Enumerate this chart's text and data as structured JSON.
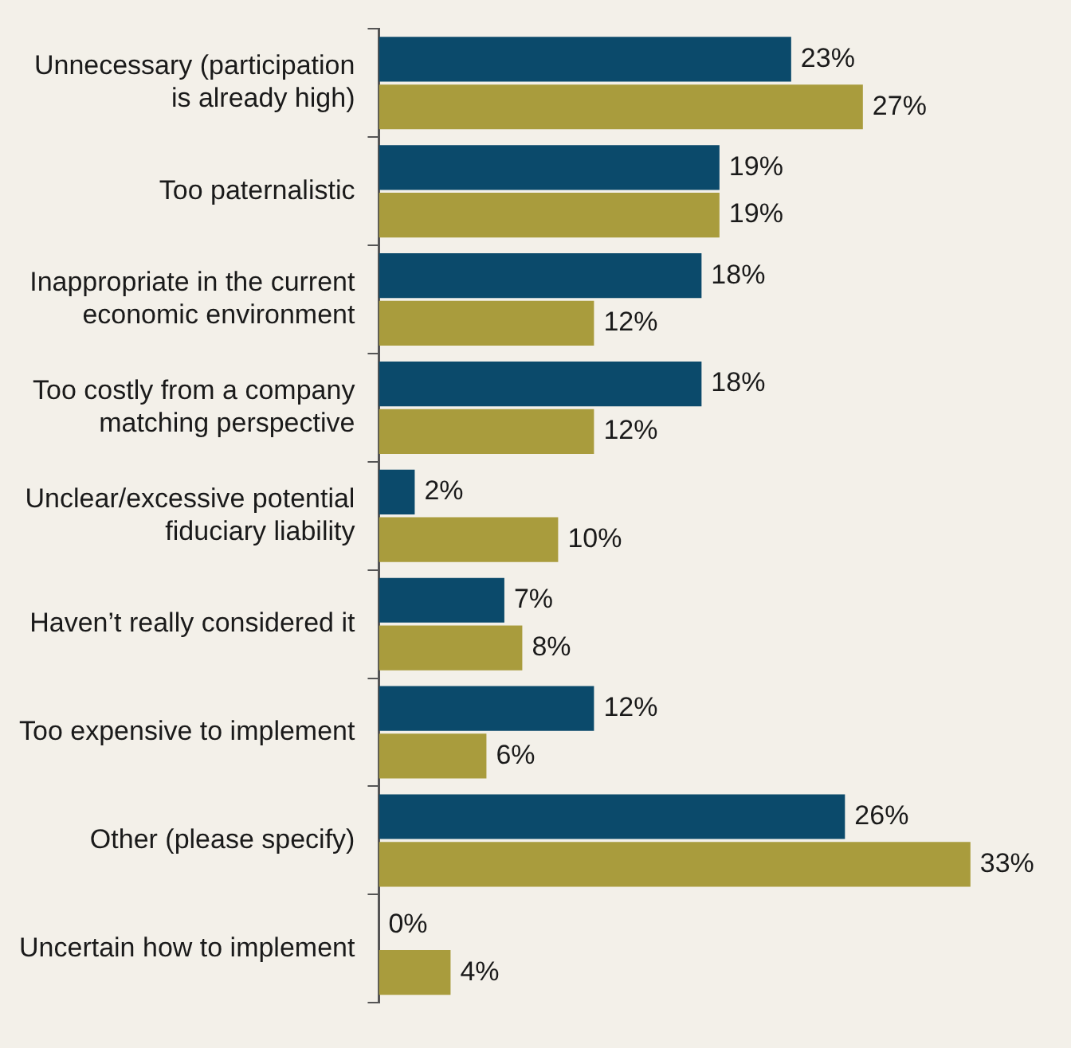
{
  "chart_data": {
    "type": "bar",
    "orientation": "horizontal",
    "legend": false,
    "categories": [
      "Unnecessary (participation is already high)",
      "Too paternalistic",
      "Inappropriate in the current economic environment",
      "Too costly from a company matching perspective",
      "Unclear/excessive potential fiduciary liability",
      "Haven’t really considered it",
      "Too expensive to implement",
      "Other (please specify)",
      "Uncertain how to implement"
    ],
    "series": [
      {
        "color": "#0b4a6b",
        "values": [
          23,
          19,
          18,
          18,
          2,
          7,
          12,
          26,
          0
        ],
        "value_labels": [
          "23%",
          "19%",
          "18%",
          "18%",
          "2%",
          "7%",
          "12%",
          "26%",
          "0%"
        ]
      },
      {
        "color": "#a99c3d",
        "values": [
          27,
          19,
          12,
          12,
          10,
          8,
          6,
          33,
          4
        ],
        "value_labels": [
          "27%",
          "19%",
          "12%",
          "12%",
          "10%",
          "8%",
          "6%",
          "33%",
          "4%"
        ]
      }
    ]
  }
}
